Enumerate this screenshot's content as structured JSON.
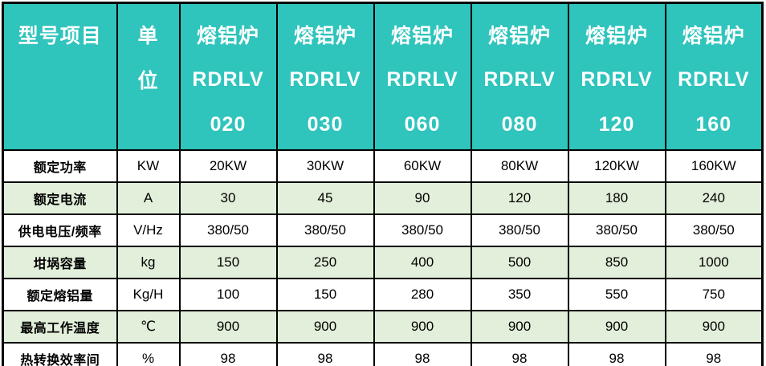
{
  "colors": {
    "header_bg": "#2FC4BC",
    "header_text": "#FFFFFF",
    "row_bg": "#FFFFFF",
    "row_alt_bg": "#E2EFDA",
    "border": "#000000",
    "body_text": "#000000"
  },
  "table": {
    "header": [
      {
        "lines": [
          "型号项目"
        ]
      },
      {
        "lines": [
          "单",
          "位"
        ]
      },
      {
        "lines": [
          "熔铝炉",
          "RDRLV",
          "020"
        ]
      },
      {
        "lines": [
          "熔铝炉",
          "RDRLV",
          "030"
        ]
      },
      {
        "lines": [
          "熔铝炉",
          "RDRLV",
          "060"
        ]
      },
      {
        "lines": [
          "熔铝炉",
          "RDRLV",
          "080"
        ]
      },
      {
        "lines": [
          "熔铝炉",
          "RDRLV",
          "120"
        ]
      },
      {
        "lines": [
          "熔铝炉",
          "RDRLV",
          "160"
        ]
      }
    ],
    "rows": [
      {
        "label": "额定功率",
        "unit": "KW",
        "values": [
          "20KW",
          "30KW",
          "60KW",
          "80KW",
          "120KW",
          "160KW"
        ]
      },
      {
        "label": "额定电流",
        "unit": "A",
        "values": [
          "30",
          "45",
          "90",
          "120",
          "180",
          "240"
        ]
      },
      {
        "label": "供电电压/频率",
        "unit": "V/Hz",
        "values": [
          "380/50",
          "380/50",
          "380/50",
          "380/50",
          "380/50",
          "380/50"
        ]
      },
      {
        "label": "坩埚容量",
        "unit": "kg",
        "values": [
          "150",
          "250",
          "400",
          "500",
          "850",
          "1000"
        ]
      },
      {
        "label": "额定熔铝量",
        "unit": "Kg/H",
        "values": [
          "100",
          "150",
          "280",
          "350",
          "550",
          "750"
        ]
      },
      {
        "label": "最高工作温度",
        "unit": "℃",
        "values": [
          "900",
          "900",
          "900",
          "900",
          "900",
          "900"
        ]
      },
      {
        "label": "热转换效率间",
        "unit": "%",
        "values": [
          "98",
          "98",
          "98",
          "98",
          "98",
          "98"
        ]
      }
    ]
  }
}
